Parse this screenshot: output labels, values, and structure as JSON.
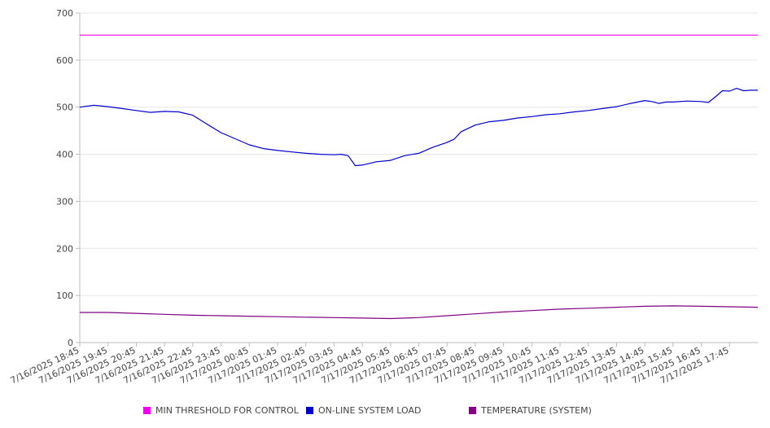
{
  "chart_data": {
    "type": "line",
    "title": "",
    "xlabel": "",
    "ylabel": "",
    "ylim": [
      0,
      700
    ],
    "yticks": [
      0,
      100,
      200,
      300,
      400,
      500,
      600,
      700
    ],
    "grid": true,
    "legend_position": "bottom",
    "x_start": "7/16/2025 18:45",
    "x_end": "7/17/2025 18:45",
    "xtick_labels": [
      "7/16/2025 18:45",
      "7/16/2025 19:45",
      "7/16/2025 20:45",
      "7/16/2025 21:45",
      "7/16/2025 22:45",
      "7/16/2025 23:45",
      "7/17/2025 00:45",
      "7/17/2025 01:45",
      "7/17/2025 02:45",
      "7/17/2025 03:45",
      "7/17/2025 04:45",
      "7/17/2025 05:45",
      "7/17/2025 06:45",
      "7/17/2025 07:45",
      "7/17/2025 08:45",
      "7/17/2025 09:45",
      "7/17/2025 10:45",
      "7/17/2025 11:45",
      "7/17/2025 12:45",
      "7/17/2025 13:45",
      "7/17/2025 14:45",
      "7/17/2025 15:45",
      "7/17/2025 16:45",
      "7/17/2025 17:45"
    ],
    "series": [
      {
        "name": "MIN THRESHOLD FOR CONTROL",
        "color": "#ee00ee",
        "x": [
          "7/16/2025 18:45",
          "7/17/2025 18:45"
        ],
        "values": [
          653,
          653
        ]
      },
      {
        "name": "ON-LINE SYSTEM LOAD",
        "color": "#0000cc",
        "x": [
          "7/16/2025 18:45",
          "7/16/2025 19:15",
          "7/16/2025 19:45",
          "7/16/2025 20:15",
          "7/16/2025 20:45",
          "7/16/2025 21:15",
          "7/16/2025 21:45",
          "7/16/2025 22:15",
          "7/16/2025 22:45",
          "7/16/2025 23:15",
          "7/16/2025 23:45",
          "7/17/2025 00:15",
          "7/17/2025 00:45",
          "7/17/2025 01:15",
          "7/17/2025 01:45",
          "7/17/2025 02:15",
          "7/17/2025 02:45",
          "7/17/2025 03:15",
          "7/17/2025 03:45",
          "7/17/2025 04:00",
          "7/17/2025 04:15",
          "7/17/2025 04:30",
          "7/17/2025 04:45",
          "7/17/2025 05:15",
          "7/17/2025 05:45",
          "7/17/2025 06:15",
          "7/17/2025 06:45",
          "7/17/2025 07:15",
          "7/17/2025 07:45",
          "7/17/2025 08:00",
          "7/17/2025 08:15",
          "7/17/2025 08:45",
          "7/17/2025 09:15",
          "7/17/2025 09:45",
          "7/17/2025 10:15",
          "7/17/2025 10:45",
          "7/17/2025 11:15",
          "7/17/2025 11:45",
          "7/17/2025 12:15",
          "7/17/2025 12:45",
          "7/17/2025 13:15",
          "7/17/2025 13:45",
          "7/17/2025 14:15",
          "7/17/2025 14:45",
          "7/17/2025 15:00",
          "7/17/2025 15:15",
          "7/17/2025 15:30",
          "7/17/2025 15:45",
          "7/17/2025 16:15",
          "7/17/2025 16:45",
          "7/17/2025 17:00",
          "7/17/2025 17:15",
          "7/17/2025 17:30",
          "7/17/2025 17:45",
          "7/17/2025 18:00",
          "7/17/2025 18:15",
          "7/17/2025 18:30",
          "7/17/2025 18:45"
        ],
        "values": [
          500,
          504,
          501,
          497,
          493,
          489,
          491,
          490,
          483,
          464,
          446,
          433,
          420,
          412,
          408,
          405,
          402,
          400,
          399,
          400,
          397,
          376,
          377,
          384,
          387,
          397,
          402,
          415,
          425,
          432,
          448,
          462,
          469,
          472,
          477,
          480,
          484,
          486,
          490,
          493,
          497,
          501,
          508,
          514,
          512,
          508,
          511,
          511,
          513,
          512,
          510,
          522,
          535,
          534,
          540,
          535,
          536,
          536
        ]
      },
      {
        "name": "TEMPERATURE (SYSTEM)",
        "color": "#800080",
        "x": [
          "7/16/2025 18:45",
          "7/16/2025 19:45",
          "7/16/2025 20:45",
          "7/16/2025 21:45",
          "7/16/2025 22:45",
          "7/16/2025 23:45",
          "7/17/2025 00:45",
          "7/17/2025 01:45",
          "7/17/2025 02:45",
          "7/17/2025 03:45",
          "7/17/2025 04:45",
          "7/17/2025 05:45",
          "7/17/2025 06:45",
          "7/17/2025 07:45",
          "7/17/2025 08:45",
          "7/17/2025 09:45",
          "7/17/2025 10:45",
          "7/17/2025 11:45",
          "7/17/2025 12:45",
          "7/17/2025 13:45",
          "7/17/2025 14:45",
          "7/17/2025 15:45",
          "7/17/2025 16:45",
          "7/17/2025 17:45",
          "7/17/2025 18:45"
        ],
        "values": [
          64,
          64,
          62,
          60,
          58,
          57,
          56,
          55,
          54,
          53,
          52,
          51,
          53,
          57,
          61,
          65,
          68,
          71,
          73,
          75,
          77,
          78,
          77,
          76,
          75
        ]
      }
    ]
  }
}
